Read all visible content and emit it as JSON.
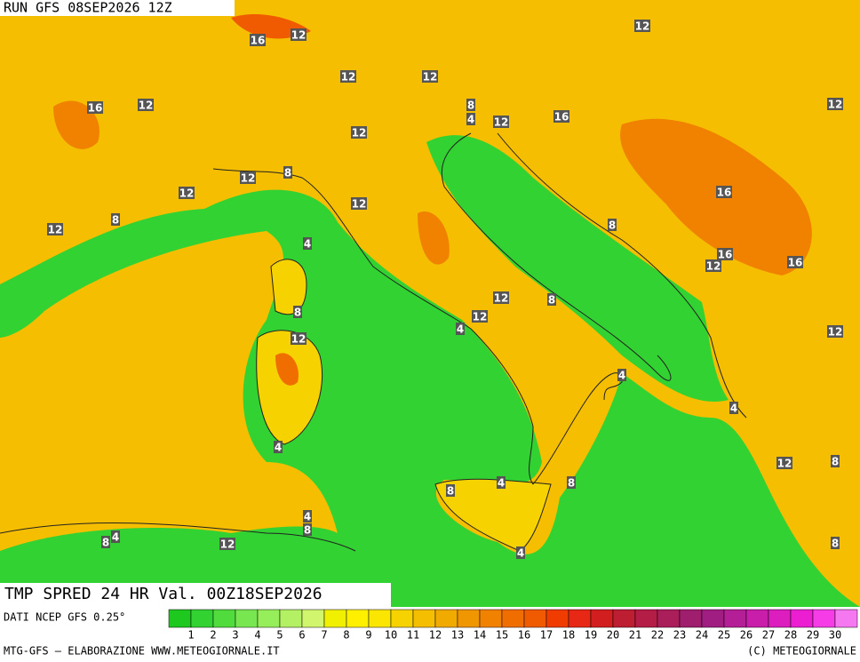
{
  "header": {
    "run": "RUN GFS 08SEP2026 12Z"
  },
  "footer": {
    "field": "TMP SPRED 24 HR Val. 00Z18SEP2026",
    "source": "DATI NCEP GFS 0.25°",
    "credit": "MTG-GFS — ELABORAZIONE WWW.METEOGIORNALE.IT",
    "copyright": "(C) METEOGIORNALE"
  },
  "contour_labels": [
    16,
    12,
    12,
    16,
    12,
    12,
    12,
    8,
    4,
    12,
    16,
    12,
    12,
    8,
    12,
    12,
    8,
    12,
    12,
    16,
    4,
    8,
    16,
    12,
    16,
    12,
    8,
    12,
    8,
    12,
    4,
    12,
    4,
    4,
    4,
    12,
    8,
    8,
    4,
    8,
    4,
    8,
    4,
    8,
    12,
    4,
    8
  ],
  "legend": {
    "ticks": [
      1,
      2,
      3,
      4,
      5,
      6,
      7,
      8,
      9,
      10,
      11,
      12,
      13,
      14,
      15,
      16,
      17,
      18,
      19,
      20,
      21,
      22,
      23,
      24,
      25,
      26,
      27,
      28,
      29,
      30
    ],
    "colors": [
      "#1ec81e",
      "#32d232",
      "#50dc3c",
      "#78e650",
      "#96ee5a",
      "#b4f064",
      "#d2f56e",
      "#f0f000",
      "#fff000",
      "#fae600",
      "#f5d200",
      "#f5be00",
      "#f0aa00",
      "#f09600",
      "#f08200",
      "#f06e00",
      "#f05a00",
      "#f03c00",
      "#e62814",
      "#d21e1e",
      "#be1e32",
      "#b41e46",
      "#aa1e5a",
      "#a01e6e",
      "#a01e82",
      "#b41e96",
      "#c81eaa",
      "#dc1ebe",
      "#eb1ed2",
      "#f53ce6",
      "#f578f0"
    ]
  }
}
